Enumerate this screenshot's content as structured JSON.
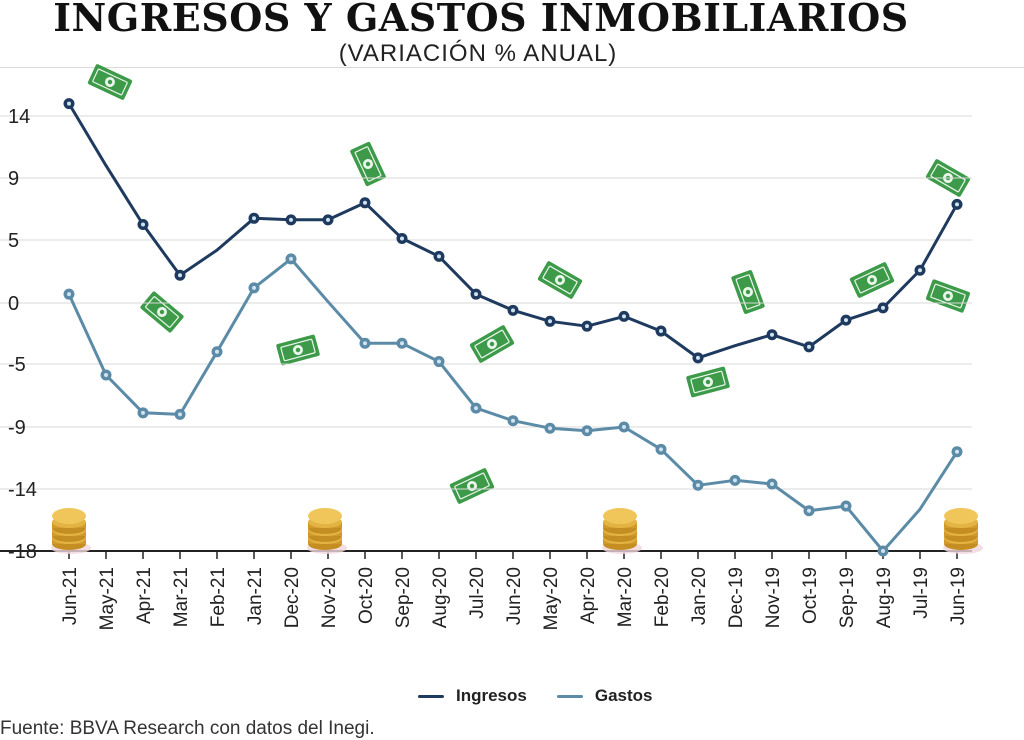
{
  "header": {
    "title": "INGRESOS Y GASTOS INMOBILIARIOS",
    "subtitle": "(VARIACIÓN % ANUAL)"
  },
  "source": "Fuente: BBVA Research con datos del Inegi.",
  "chart_data": {
    "type": "line",
    "categories": [
      "Jun-21",
      "May-21",
      "Apr-21",
      "Mar-21",
      "Feb-21",
      "Jan-21",
      "Dec-20",
      "Nov-20",
      "Oct-20",
      "Sep-20",
      "Aug-20",
      "Jul-20",
      "Jun-20",
      "May-20",
      "Apr-20",
      "Mar-20",
      "Feb-20",
      "Jan-20",
      "Dec-19",
      "Nov-19",
      "Oct-19",
      "Sep-19",
      "Aug-19",
      "Jul-19",
      "Jun-19"
    ],
    "y_ticks": [
      14,
      9,
      5,
      0,
      -5,
      -9,
      -14,
      -18
    ],
    "ylim": [
      -18,
      16
    ],
    "grid": true,
    "legend_position": "bottom-center",
    "series": [
      {
        "name": "Ingresos",
        "color": "#1f3a5f",
        "values": [
          15.0,
          10.0,
          6.0,
          2.2,
          4.2,
          6.4,
          6.3,
          6.3,
          7.4,
          5.1,
          3.7,
          0.7,
          -0.6,
          -1.5,
          -1.9,
          -1.1,
          -2.3,
          -4.5,
          -3.5,
          -2.6,
          -3.6,
          -1.4,
          -0.4,
          2.6,
          7.3
        ]
      },
      {
        "name": "Gastos",
        "color": "#5b8ba6",
        "values": [
          0.7,
          -5.7,
          -8.1,
          -8.2,
          -4.0,
          1.2,
          3.5,
          0.1,
          -3.3,
          -3.3,
          -4.8,
          -7.8,
          -8.6,
          -9.1,
          -9.3,
          -9.0,
          -10.8,
          -13.7,
          -13.3,
          -13.6,
          -15.4,
          -15.1,
          -18.0,
          -15.3,
          -11.0
        ]
      }
    ]
  },
  "decor": {
    "money_color": "#3c9a49",
    "coin_color": "#e3b344"
  }
}
